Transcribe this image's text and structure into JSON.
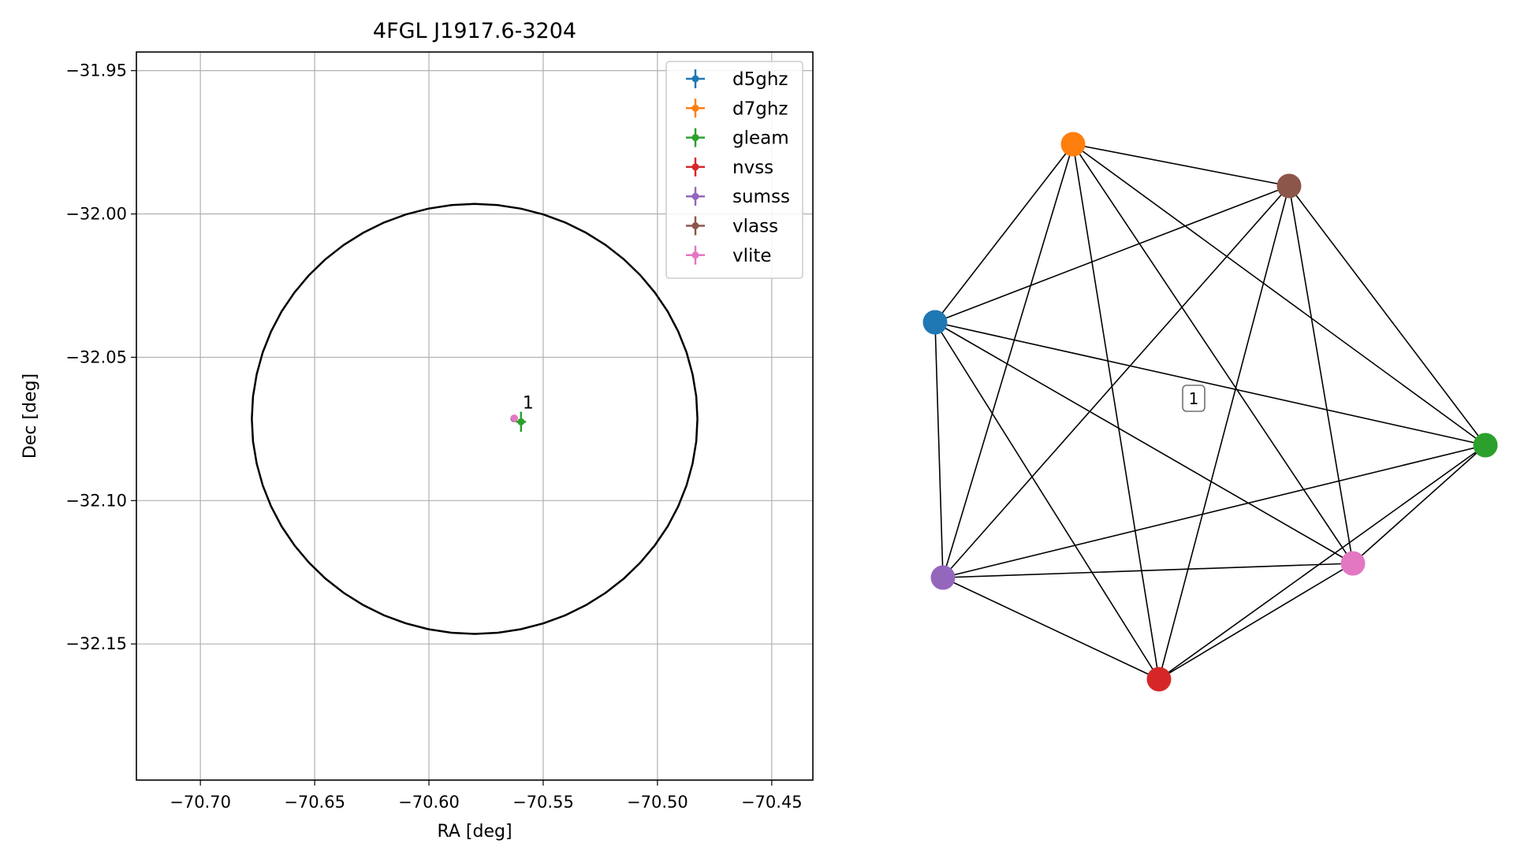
{
  "chart_data": [
    {
      "type": "scatter",
      "title": "4FGL J1917.6-3204",
      "xlabel": "RA [deg]",
      "ylabel": "Dec [deg]",
      "xlim": [
        -70.728,
        -70.432
      ],
      "ylim": [
        -32.1975,
        -31.9435
      ],
      "xticks": [
        -70.7,
        -70.65,
        -70.6,
        -70.55,
        -70.5,
        -70.45
      ],
      "xtick_labels": [
        "−70.70",
        "−70.65",
        "−70.60",
        "−70.55",
        "−70.50",
        "−70.45"
      ],
      "yticks": [
        -31.95,
        -32.0,
        -32.05,
        -32.1,
        -32.15
      ],
      "ytick_labels": [
        "−31.95",
        "−32.00",
        "−32.05",
        "−32.10",
        "−32.15"
      ],
      "grid": true,
      "legend": "upper right",
      "ellipse": {
        "center": [
          -70.58,
          -32.0715
        ],
        "semi_axis_ra": 0.0975,
        "semi_axis_dec": 0.075,
        "color": "#000000"
      },
      "series": [
        {
          "name": "d5ghz",
          "color": "#1f77b4",
          "x": [
            -70.5627
          ],
          "y": [
            -32.0713
          ],
          "xerr": [
            0.0005
          ],
          "yerr": [
            0.0005
          ]
        },
        {
          "name": "d7ghz",
          "color": "#ff7f0e",
          "x": [
            -70.5627
          ],
          "y": [
            -32.0713
          ],
          "xerr": [
            0.0005
          ],
          "yerr": [
            0.0005
          ]
        },
        {
          "name": "gleam",
          "color": "#2ca02c",
          "x": [
            -70.5597
          ],
          "y": [
            -32.0725
          ],
          "xerr": [
            0.0022
          ],
          "yerr": [
            0.0035
          ]
        },
        {
          "name": "nvss",
          "color": "#d62728",
          "x": [
            -70.5627
          ],
          "y": [
            -32.0713
          ],
          "xerr": [
            0.0006
          ],
          "yerr": [
            0.0006
          ]
        },
        {
          "name": "sumss",
          "color": "#9467bd",
          "x": [
            -70.5628
          ],
          "y": [
            -32.0714
          ],
          "xerr": [
            0.0008
          ],
          "yerr": [
            0.0008
          ]
        },
        {
          "name": "vlass",
          "color": "#8c564b",
          "x": [
            -70.5627
          ],
          "y": [
            -32.0713
          ],
          "xerr": [
            0.0003
          ],
          "yerr": [
            0.0003
          ]
        },
        {
          "name": "vlite",
          "color": "#e377c2",
          "x": [
            -70.5626
          ],
          "y": [
            -32.0712
          ],
          "xerr": [
            0.0009
          ],
          "yerr": [
            0.0009
          ]
        }
      ],
      "annotations": [
        {
          "text": "1",
          "x": -70.559,
          "y": -32.0685
        }
      ]
    },
    {
      "type": "network",
      "nodes": [
        {
          "id": "d5ghz",
          "color": "#1f77b4"
        },
        {
          "id": "d7ghz",
          "color": "#ff7f0e"
        },
        {
          "id": "vlass",
          "color": "#8c564b"
        },
        {
          "id": "gleam",
          "color": "#2ca02c"
        },
        {
          "id": "vlite",
          "color": "#e377c2"
        },
        {
          "id": "nvss",
          "color": "#d62728"
        },
        {
          "id": "sumss",
          "color": "#9467bd"
        }
      ],
      "edges": "all pairs",
      "cluster_label": "1"
    }
  ]
}
